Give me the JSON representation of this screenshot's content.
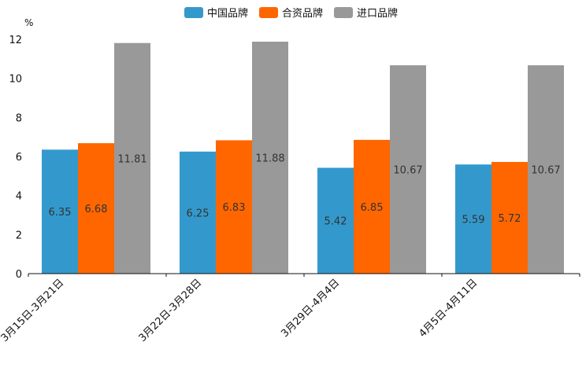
{
  "chart_data": {
    "type": "bar",
    "title": "",
    "xlabel": "",
    "ylabel": "%",
    "ylim": [
      0,
      12
    ],
    "yticks": [
      0,
      2,
      4,
      6,
      8,
      10,
      12
    ],
    "grid": false,
    "legend_position": "top-center",
    "categories": [
      "3月15日-3月21日",
      "3月22日-3月28日",
      "3月29日-4月4日",
      "4月5日-4月11日"
    ],
    "series": [
      {
        "name": "中国品牌",
        "color": "#3399cc",
        "values": [
          6.35,
          6.25,
          5.42,
          5.59
        ],
        "labels": [
          "6.35",
          "6.25",
          "5.42",
          "5.59"
        ]
      },
      {
        "name": "合资品牌",
        "color": "#ff6600",
        "values": [
          6.68,
          6.83,
          6.85,
          5.72
        ],
        "labels": [
          "6.68",
          "6.83",
          "6.85",
          "5.72"
        ]
      },
      {
        "name": "进口品牌",
        "color": "#999999",
        "values": [
          11.81,
          11.88,
          10.67,
          10.67
        ],
        "labels": [
          "11.81",
          "11.88",
          "10.67",
          "10.67"
        ]
      }
    ]
  }
}
